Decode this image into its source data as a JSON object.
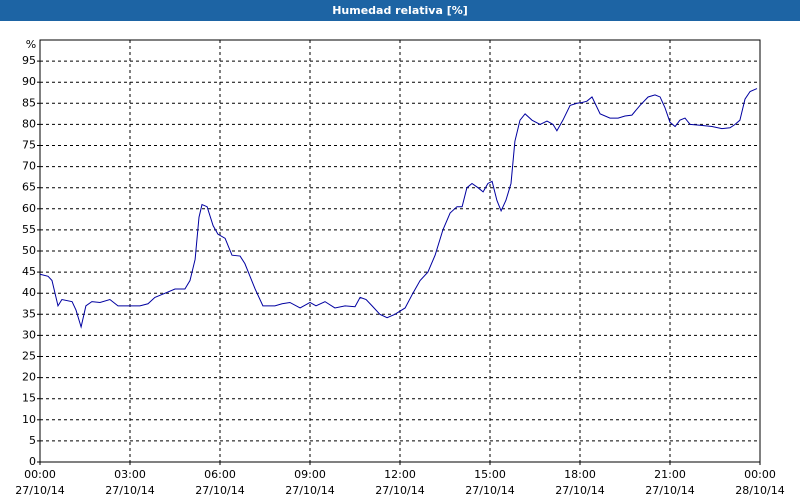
{
  "chart_data": {
    "type": "line",
    "title": "Humedad relativa [%]",
    "y_label": "%",
    "x": [
      0,
      0.27,
      0.4,
      0.6,
      0.73,
      1.07,
      1.2,
      1.37,
      1.53,
      1.73,
      2.0,
      2.33,
      2.6,
      3.0,
      3.33,
      3.6,
      3.83,
      4.17,
      4.5,
      4.83,
      5.0,
      5.17,
      5.3,
      5.4,
      5.57,
      5.77,
      5.93,
      6.17,
      6.4,
      6.67,
      6.83,
      7.17,
      7.43,
      7.83,
      8.07,
      8.33,
      8.67,
      9.0,
      9.2,
      9.5,
      9.83,
      10.17,
      10.5,
      10.67,
      10.87,
      11.07,
      11.33,
      11.57,
      11.83,
      12.17,
      12.43,
      12.67,
      12.93,
      13.17,
      13.43,
      13.67,
      13.9,
      14.07,
      14.23,
      14.4,
      14.6,
      14.77,
      14.93,
      15.07,
      15.23,
      15.37,
      15.53,
      15.7,
      15.83,
      16.0,
      16.17,
      16.4,
      16.67,
      16.9,
      17.1,
      17.23,
      17.43,
      17.67,
      17.9,
      18.07,
      18.23,
      18.4,
      18.67,
      19.0,
      19.27,
      19.5,
      19.73,
      20.0,
      20.27,
      20.5,
      20.67,
      20.83,
      21.0,
      21.17,
      21.33,
      21.5,
      21.67,
      22.0,
      22.4,
      22.73,
      23.0,
      23.17,
      23.33,
      23.5,
      23.67,
      23.9
    ],
    "series": [
      {
        "name": "Humedad relativa",
        "color": "#0000a0",
        "values": [
          44.5,
          44,
          43,
          37,
          38.5,
          38,
          36,
          32,
          37,
          38,
          37.8,
          38.5,
          37,
          37,
          37,
          37.5,
          39,
          40,
          41,
          41,
          43,
          48,
          58,
          61,
          60.5,
          56,
          54,
          53,
          49,
          48.8,
          47,
          41,
          37,
          37,
          37.5,
          37.8,
          36.5,
          37.8,
          37,
          38,
          36.5,
          37,
          36.8,
          39,
          38.5,
          37,
          35,
          34.2,
          35,
          36.5,
          40,
          43,
          45,
          49,
          55,
          59,
          60.5,
          60.5,
          65,
          66,
          65,
          64,
          66,
          66.5,
          62,
          59.5,
          62,
          66,
          76,
          81,
          82.5,
          81,
          80,
          80.8,
          80,
          78.5,
          81,
          84.5,
          85,
          85.2,
          85.5,
          86.5,
          82.5,
          81.5,
          81.5,
          82,
          82.2,
          84.5,
          86.5,
          87,
          86.5,
          84,
          80.5,
          79.5,
          81,
          81.5,
          80,
          79.8,
          79.5,
          79,
          79.2,
          80,
          81,
          86,
          87.8,
          88.5
        ]
      }
    ],
    "xlim": [
      0,
      24
    ],
    "xticks": [
      {
        "value": 0,
        "label": "00:00"
      },
      {
        "value": 3,
        "label": "03:00"
      },
      {
        "value": 6,
        "label": "06:00"
      },
      {
        "value": 9,
        "label": "09:00"
      },
      {
        "value": 12,
        "label": "12:00"
      },
      {
        "value": 15,
        "label": "15:00"
      },
      {
        "value": 18,
        "label": "18:00"
      },
      {
        "value": 21,
        "label": "21:00"
      },
      {
        "value": 24,
        "label": "00:00"
      }
    ],
    "xtick_dates": [
      "27/10/14",
      "27/10/14",
      "27/10/14",
      "27/10/14",
      "27/10/14",
      "27/10/14",
      "27/10/14",
      "27/10/14",
      "28/10/14"
    ],
    "ylim": [
      0,
      100
    ],
    "yticks": [
      0,
      5,
      10,
      15,
      20,
      25,
      30,
      35,
      40,
      45,
      50,
      55,
      60,
      65,
      70,
      75,
      80,
      85,
      90,
      95
    ],
    "grid": true
  }
}
